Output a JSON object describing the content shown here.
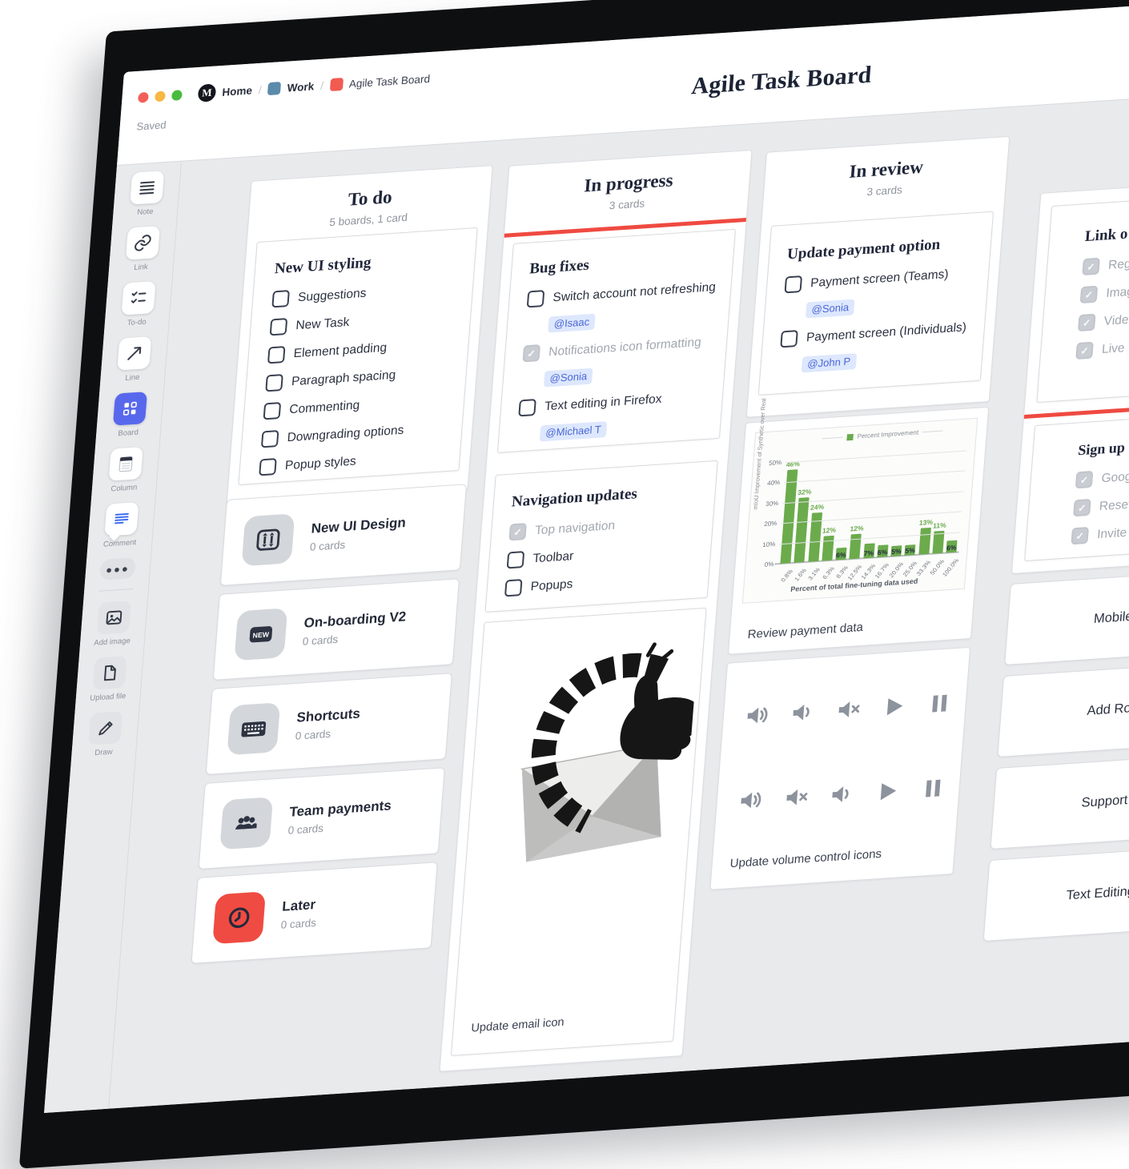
{
  "window": {
    "title": "Agile Task Board",
    "status": "Saved",
    "breadcrumb": {
      "home": "Home",
      "work": "Work",
      "board": "Agile Task Board",
      "sep": "/"
    }
  },
  "toolbar": {
    "items": [
      {
        "icon": "note-icon",
        "label": "Note"
      },
      {
        "icon": "link-icon",
        "label": "Link"
      },
      {
        "icon": "todo-icon",
        "label": "To-do"
      },
      {
        "icon": "line-icon",
        "label": "Line"
      },
      {
        "icon": "board-icon",
        "label": "Board"
      },
      {
        "icon": "column-icon",
        "label": "Column"
      },
      {
        "icon": "comment-icon",
        "label": "Comment"
      },
      {
        "icon": "more-icon",
        "label": ""
      },
      {
        "icon": "add-image-icon",
        "label": "Add image"
      },
      {
        "icon": "upload-file-icon",
        "label": "Upload file"
      },
      {
        "icon": "draw-icon",
        "label": "Draw"
      }
    ]
  },
  "columns": {
    "todo": {
      "title": "To do",
      "subtitle": "5 boards, 1 card",
      "checklist_card": {
        "title": "New UI styling",
        "items": [
          {
            "label": "Suggestions",
            "checked": false
          },
          {
            "label": "New Task",
            "checked": false
          },
          {
            "label": "Element padding",
            "checked": false
          },
          {
            "label": "Paragraph spacing",
            "checked": false
          },
          {
            "label": "Commenting",
            "checked": false
          },
          {
            "label": "Downgrading options",
            "checked": false
          },
          {
            "label": "Popup styles",
            "checked": false
          }
        ]
      },
      "tiles": [
        {
          "title": "New UI Design",
          "meta": "0 cards",
          "icon": "sliders-icon",
          "accent": "grey"
        },
        {
          "title": "On-boarding V2",
          "meta": "0 cards",
          "icon": "new-badge-icon",
          "accent": "grey"
        },
        {
          "title": "Shortcuts",
          "meta": "0 cards",
          "icon": "keyboard-icon",
          "accent": "grey"
        },
        {
          "title": "Team payments",
          "meta": "0 cards",
          "icon": "people-icon",
          "accent": "grey"
        },
        {
          "title": "Later",
          "meta": "0 cards",
          "icon": "clock-icon",
          "accent": "red"
        }
      ]
    },
    "in_progress": {
      "title": "In progress",
      "subtitle": "3 cards",
      "bug_card": {
        "title": "Bug fixes",
        "items": [
          {
            "label": "Switch account not refreshing",
            "checked": false,
            "mention": "@Isaac"
          },
          {
            "label": "Notifications icon formatting",
            "checked": true,
            "mention": "@Sonia"
          },
          {
            "label": "Text editing in Firefox",
            "checked": false,
            "mention": "@Michael T"
          }
        ]
      },
      "nav_card": {
        "title": "Navigation updates",
        "items": [
          {
            "label": "Top navigation",
            "checked": true
          },
          {
            "label": "Toolbar",
            "checked": false
          },
          {
            "label": "Popups",
            "checked": false
          }
        ]
      },
      "image_caption": "Update email icon"
    },
    "in_review": {
      "title": "In review",
      "subtitle": "3 cards",
      "payment_card": {
        "title": "Update payment option",
        "items": [
          {
            "label": "Payment screen (Teams)",
            "checked": false,
            "mention": "@Sonia"
          },
          {
            "label": "Payment screen (Individuals)",
            "checked": false,
            "mention": "@John P"
          }
        ]
      },
      "chart_caption": "Review payment data",
      "volume_caption": "Update volume control icons",
      "volume_rows": [
        [
          "volume-high",
          "volume-low",
          "volume-mute",
          "play",
          "pause"
        ],
        [
          "volume-high",
          "volume-mute",
          "volume-low",
          "play",
          "pause"
        ]
      ]
    },
    "partial": {
      "link_card": {
        "title": "Link o",
        "items": [
          {
            "label": "Reg",
            "checked": true
          },
          {
            "label": "Imag",
            "checked": true
          },
          {
            "label": "Vide",
            "checked": true
          },
          {
            "label": "Live",
            "checked": true
          }
        ]
      },
      "signup_card": {
        "title": "Sign up",
        "items": [
          {
            "label": "Goog",
            "checked": true
          },
          {
            "label": "Reset",
            "checked": true
          },
          {
            "label": "Invite",
            "checked": true
          }
        ]
      },
      "tiles": [
        "Mobile view",
        "Add Roles t",
        "Support for",
        "Text Editing U"
      ]
    }
  },
  "chart_data": {
    "type": "bar",
    "title": "",
    "legend": "Percent Improvement",
    "ylabel": "mIoU Improvement of Synthetic over Real",
    "xlabel": "Percent of total fine-tuning data used",
    "categories": [
      "0.8%",
      "1.6%",
      "3.1%",
      "6.3%",
      "8.3%",
      "12.5%",
      "14.3%",
      "16.7%",
      "20.0%",
      "25.0%",
      "33.3%",
      "50.0%",
      "100.0%"
    ],
    "values": [
      46,
      32,
      24,
      12,
      6,
      12,
      7,
      6,
      5,
      5,
      13,
      11,
      6
    ],
    "value_labels": [
      "46%",
      "32%",
      "24%",
      "12%",
      "6%",
      "12%",
      "7%",
      "6%",
      "5%",
      "5%",
      "13%",
      "11%",
      "6%"
    ],
    "yticks": [
      "0%",
      "10%",
      "20%",
      "30%",
      "40%",
      "50%"
    ],
    "ylim": [
      0,
      55
    ],
    "grid": true,
    "legend_position": "top",
    "bar_color": "#6BAB4C"
  },
  "colors": {
    "accent_red": "#EF4A41",
    "mention_blue": "#4A67D6",
    "mention_bg": "#DDE7FD",
    "bar_green": "#6BAB4C",
    "board_blue": "#5868EC",
    "canvas_grey": "#E9EAEC"
  }
}
